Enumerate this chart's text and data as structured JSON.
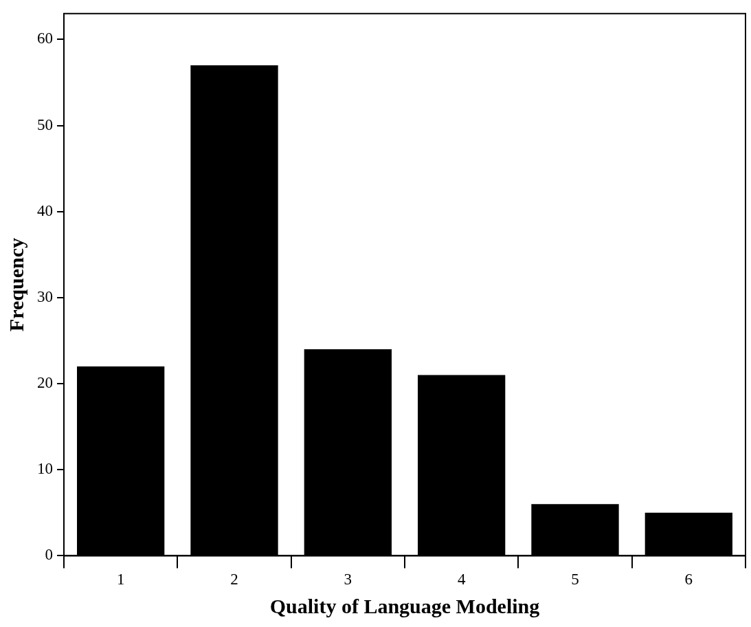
{
  "chart_data": {
    "type": "bar",
    "xlabel": "Quality of Language Modeling",
    "ylabel": "Frequency",
    "categories": [
      "1",
      "2",
      "3",
      "4",
      "5",
      "6"
    ],
    "values": [
      22,
      57,
      24,
      21,
      6,
      5
    ],
    "color": "#000000",
    "ylim": [
      0,
      63
    ],
    "yticks": [
      0,
      10,
      20,
      30,
      40,
      50,
      60
    ],
    "grid": false,
    "legend": false
  }
}
